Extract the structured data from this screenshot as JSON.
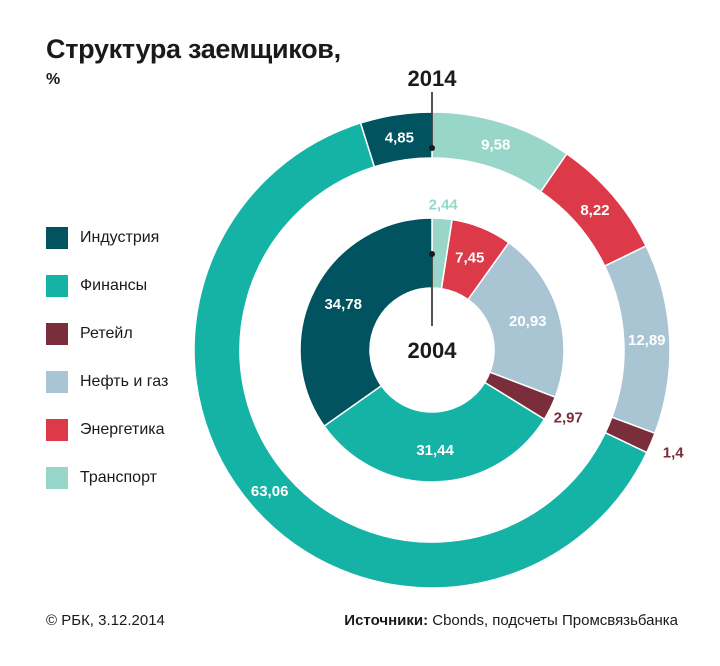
{
  "title": "Структура заемщиков,",
  "unit": "%",
  "footer": {
    "copyright": "© РБК, 3.12.2014",
    "source_label": "Источники:",
    "source_text": "Cbonds, подсчеты Промсвязьбанка"
  },
  "colors": {
    "industry": "#00535f",
    "finance": "#15b2a6",
    "retail": "#7a2d3a",
    "oilgas": "#a9c4d3",
    "energy": "#dc3a48",
    "transport": "#97d6c9"
  },
  "legend": [
    {
      "label": "Индустрия",
      "color": "#00535f"
    },
    {
      "label": "Финансы",
      "color": "#15b2a6"
    },
    {
      "label": "Ретейл",
      "color": "#7a2d3a"
    },
    {
      "label": "Нефть и газ",
      "color": "#a9c4d3"
    },
    {
      "label": "Энергетика",
      "color": "#dc3a48"
    },
    {
      "label": "Транспорт",
      "color": "#97d6c9"
    }
  ],
  "chart_data": {
    "type": "pie",
    "subtype": "nested-donut",
    "categories": [
      "Транспорт",
      "Энергетика",
      "Нефть и газ",
      "Ретейл",
      "Финансы",
      "Индустрия"
    ],
    "series": [
      {
        "name": "2014",
        "ring": "outer",
        "values": [
          9.58,
          8.22,
          12.89,
          1.4,
          63.06,
          4.85
        ],
        "labels": [
          "9,58",
          "8,22",
          "12,89",
          "1,4",
          "63,06",
          "4,85"
        ]
      },
      {
        "name": "2004",
        "ring": "inner",
        "values": [
          2.44,
          7.45,
          20.93,
          2.97,
          31.44,
          34.78
        ],
        "labels": [
          "2,44",
          "7,45",
          "20,93",
          "2,97",
          "31,44",
          "34,78"
        ]
      }
    ],
    "legend_position": "left"
  }
}
